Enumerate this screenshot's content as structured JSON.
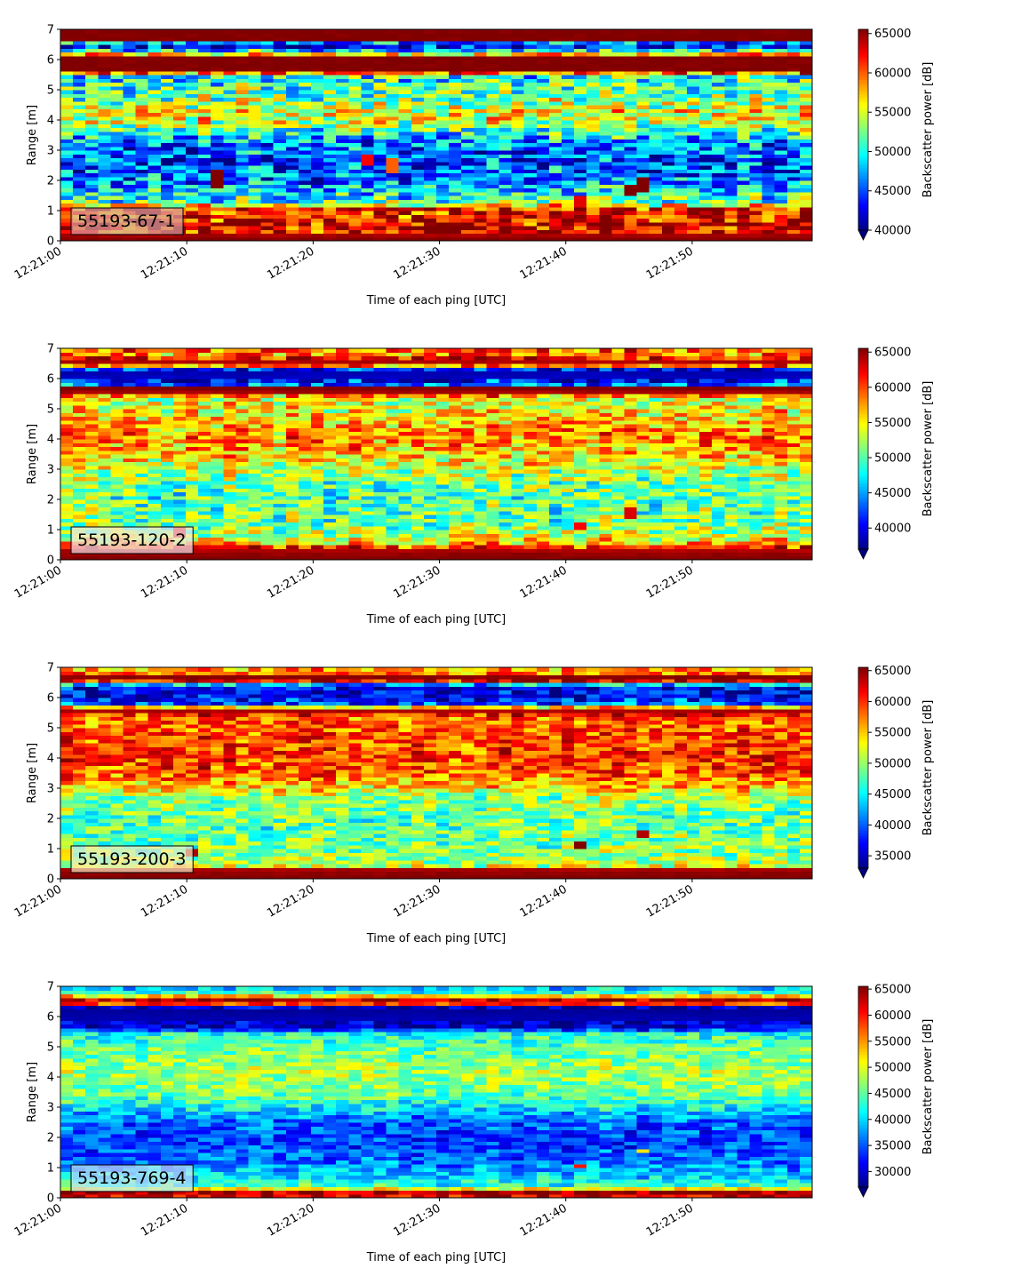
{
  "colors": {
    "frame": "#000000",
    "annotation_box_alpha": 0.7
  },
  "colormap": "jet",
  "chart_data": [
    {
      "type": "heatmap",
      "label": "55193-67-1",
      "label_bg": "#d4a0a4",
      "xlabel": "Time of each ping [UTC]",
      "ylabel": "Range [m]",
      "colorbar_label": "Backscatter power [dB]",
      "x_ticks": [
        "12:21:00",
        "12:21:10",
        "12:21:20",
        "12:21:30",
        "12:21:40",
        "12:21:50"
      ],
      "xlim_seconds": [
        0,
        59.5
      ],
      "y_ticks": [
        "0",
        "1",
        "2",
        "3",
        "4",
        "5",
        "6",
        "7"
      ],
      "ylim": [
        0,
        7
      ],
      "clim": [
        40000,
        65535
      ],
      "colorbar_ticks": [
        "40000",
        "45000",
        "50000",
        "55000",
        "60000",
        "65000"
      ],
      "pings": 60,
      "range_bins": 56,
      "profile": [
        [
          0.0,
          65535
        ],
        [
          0.15,
          65535
        ],
        [
          0.25,
          63000
        ],
        [
          0.55,
          63500
        ],
        [
          0.9,
          62000
        ],
        [
          1.1,
          62000
        ],
        [
          1.25,
          52000
        ],
        [
          1.6,
          49000
        ],
        [
          2.1,
          46000
        ],
        [
          2.6,
          45000
        ],
        [
          3.1,
          46000
        ],
        [
          3.5,
          49000
        ],
        [
          3.9,
          55000
        ],
        [
          4.3,
          56000
        ],
        [
          4.7,
          53000
        ],
        [
          5.2,
          51000
        ],
        [
          5.5,
          50000
        ],
        [
          5.6,
          65535
        ],
        [
          6.1,
          65535
        ],
        [
          6.2,
          56000
        ],
        [
          6.4,
          44000
        ],
        [
          6.55,
          43000
        ],
        [
          6.62,
          65535
        ],
        [
          7.0,
          65535
        ]
      ],
      "noise": 5500,
      "highlights": [
        {
          "t": 12.5,
          "r0": 1.8,
          "r1": 2.4,
          "v": 65535
        },
        {
          "t": 24.5,
          "r0": 2.5,
          "r1": 2.9,
          "v": 62500
        },
        {
          "t": 26.5,
          "r0": 2.3,
          "r1": 2.7,
          "v": 60000
        },
        {
          "t": 41.5,
          "r0": 1.1,
          "r1": 1.5,
          "v": 63000
        },
        {
          "t": 45.5,
          "r0": 1.5,
          "r1": 1.9,
          "v": 65535
        },
        {
          "t": 46.5,
          "r0": 1.6,
          "r1": 2.1,
          "v": 65535
        }
      ]
    },
    {
      "type": "heatmap",
      "label": "55193-120-2",
      "label_bg": "#f0e6ec",
      "xlabel": "Time of each ping [UTC]",
      "ylabel": "Range [m]",
      "colorbar_label": "Backscatter power [dB]",
      "x_ticks": [
        "12:21:00",
        "12:21:10",
        "12:21:20",
        "12:21:30",
        "12:21:40",
        "12:21:50"
      ],
      "xlim_seconds": [
        0,
        59.5
      ],
      "y_ticks": [
        "0",
        "1",
        "2",
        "3",
        "4",
        "5",
        "6",
        "7"
      ],
      "ylim": [
        0,
        7
      ],
      "clim": [
        37000,
        65535
      ],
      "colorbar_ticks": [
        "40000",
        "45000",
        "50000",
        "55000",
        "60000",
        "65000"
      ],
      "pings": 60,
      "range_bins": 56,
      "profile": [
        [
          0.0,
          65535
        ],
        [
          0.1,
          65535
        ],
        [
          0.35,
          64000
        ],
        [
          0.5,
          58000
        ],
        [
          0.8,
          53000
        ],
        [
          1.2,
          51000
        ],
        [
          2.0,
          50000
        ],
        [
          2.6,
          51000
        ],
        [
          3.1,
          54000
        ],
        [
          3.6,
          57000
        ],
        [
          4.0,
          58500
        ],
        [
          4.4,
          57500
        ],
        [
          5.0,
          55000
        ],
        [
          5.4,
          54000
        ],
        [
          5.5,
          64000
        ],
        [
          5.7,
          65535
        ],
        [
          5.8,
          44000
        ],
        [
          6.1,
          38000
        ],
        [
          6.3,
          39000
        ],
        [
          6.45,
          60000
        ],
        [
          6.6,
          65535
        ],
        [
          6.8,
          58000
        ],
        [
          7.0,
          60000
        ]
      ],
      "noise": 5000,
      "highlights": [
        {
          "t": 9.5,
          "r0": 0.8,
          "r1": 1.1,
          "v": 63000
        },
        {
          "t": 41.5,
          "r0": 1.0,
          "r1": 1.3,
          "v": 62000
        },
        {
          "t": 45.5,
          "r0": 1.4,
          "r1": 1.7,
          "v": 63000
        }
      ]
    },
    {
      "type": "heatmap",
      "label": "55193-200-3",
      "label_bg": "#f4ecc4",
      "xlabel": "Time of each ping [UTC]",
      "ylabel": "Range [m]",
      "colorbar_label": "Backscatter power [dB]",
      "x_ticks": [
        "12:21:00",
        "12:21:10",
        "12:21:20",
        "12:21:30",
        "12:21:40",
        "12:21:50"
      ],
      "xlim_seconds": [
        0,
        59.5
      ],
      "y_ticks": [
        "0",
        "1",
        "2",
        "3",
        "4",
        "5",
        "6",
        "7"
      ],
      "ylim": [
        0,
        7
      ],
      "clim": [
        33000,
        65535
      ],
      "colorbar_ticks": [
        "35000",
        "40000",
        "45000",
        "50000",
        "55000",
        "60000",
        "65000"
      ],
      "pings": 60,
      "range_bins": 56,
      "profile": [
        [
          0.0,
          65535
        ],
        [
          0.1,
          65535
        ],
        [
          0.35,
          64000
        ],
        [
          0.45,
          50000
        ],
        [
          1.0,
          49000
        ],
        [
          2.0,
          48000
        ],
        [
          2.7,
          50000
        ],
        [
          3.0,
          54000
        ],
        [
          3.4,
          58000
        ],
        [
          4.0,
          60000
        ],
        [
          4.6,
          59000
        ],
        [
          5.3,
          58000
        ],
        [
          5.5,
          62000
        ],
        [
          5.6,
          65535
        ],
        [
          5.8,
          40000
        ],
        [
          6.1,
          36000
        ],
        [
          6.4,
          37000
        ],
        [
          6.55,
          62000
        ],
        [
          6.7,
          65535
        ],
        [
          6.85,
          55000
        ],
        [
          7.0,
          57000
        ]
      ],
      "noise": 5000,
      "highlights": [
        {
          "t": 10.5,
          "r0": 0.8,
          "r1": 1.0,
          "v": 64000
        },
        {
          "t": 41.5,
          "r0": 1.0,
          "r1": 1.2,
          "v": 65535
        },
        {
          "t": 46.5,
          "r0": 1.4,
          "r1": 1.6,
          "v": 64000
        }
      ]
    },
    {
      "type": "heatmap",
      "label": "55193-769-4",
      "label_bg": "#c8e4f6",
      "xlabel": "Time of each ping [UTC]",
      "ylabel": "Range [m]",
      "colorbar_label": "Backscatter power [dB]",
      "x_ticks": [
        "12:21:00",
        "12:21:10",
        "12:21:20",
        "12:21:30",
        "12:21:40",
        "12:21:50"
      ],
      "xlim_seconds": [
        0,
        59.5
      ],
      "y_ticks": [
        "0",
        "1",
        "2",
        "3",
        "4",
        "5",
        "6",
        "7"
      ],
      "ylim": [
        0,
        7
      ],
      "clim": [
        27000,
        65535
      ],
      "colorbar_ticks": [
        "30000",
        "35000",
        "40000",
        "45000",
        "50000",
        "55000",
        "60000",
        "65000"
      ],
      "pings": 60,
      "range_bins": 56,
      "profile": [
        [
          0.0,
          55000
        ],
        [
          0.1,
          65535
        ],
        [
          0.25,
          62000
        ],
        [
          0.35,
          44000
        ],
        [
          0.7,
          40000
        ],
        [
          1.2,
          36000
        ],
        [
          1.8,
          34000
        ],
        [
          2.5,
          35000
        ],
        [
          3.0,
          41000
        ],
        [
          3.5,
          46000
        ],
        [
          4.2,
          48000
        ],
        [
          5.0,
          45000
        ],
        [
          5.5,
          42000
        ],
        [
          5.6,
          30000
        ],
        [
          6.2,
          28000
        ],
        [
          6.35,
          30000
        ],
        [
          6.45,
          62000
        ],
        [
          6.6,
          64000
        ],
        [
          6.75,
          44000
        ],
        [
          7.0,
          38000
        ]
      ],
      "noise": 4500,
      "highlights": [
        {
          "t": 41.5,
          "r0": 1.0,
          "r1": 1.15,
          "v": 60000
        },
        {
          "t": 46.5,
          "r0": 1.5,
          "r1": 1.65,
          "v": 52000
        }
      ]
    }
  ]
}
